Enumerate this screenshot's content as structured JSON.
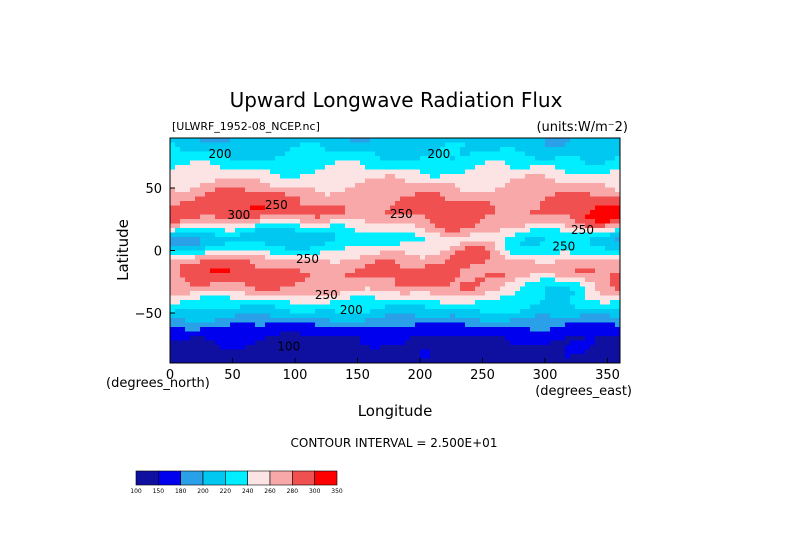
{
  "chart_data": {
    "type": "heatmap",
    "title": "Upward Longwave Radiation Flux",
    "file_label": "[ULWRF_1952-08_NCEP.nc]",
    "units_label": "(units:W/m⁻2)",
    "xlabel": "Longitude",
    "ylabel": "Latitude",
    "x_units_label": "(degrees_east)",
    "y_units_label": "(degrees_north)",
    "xlim": [
      0,
      360
    ],
    "ylim": [
      -90,
      90
    ],
    "x_ticks": [
      0,
      50,
      100,
      150,
      200,
      250,
      300,
      350
    ],
    "y_ticks": [
      -50,
      0,
      50
    ],
    "x_tick_labels": [
      "0",
      "50",
      "100",
      "150",
      "200",
      "250",
      "300",
      "350"
    ],
    "y_tick_labels": [
      "−50",
      "0",
      "50"
    ],
    "contour_interval_label": "CONTOUR INTERVAL = 2.500E+01",
    "color_levels": [
      100,
      150,
      180,
      200,
      220,
      240,
      260,
      280,
      300,
      350
    ],
    "colorbar_labels": [
      "100",
      "150",
      "180",
      "200",
      "220",
      "240",
      "260",
      "280",
      "300",
      "350"
    ],
    "colors": [
      "#1010a0",
      "#0000ee",
      "#2aa0e8",
      "#00c8f0",
      "#00eeff",
      "#fde4e4",
      "#f8a8a8",
      "#f05050",
      "#ff0000"
    ],
    "contour_labels": [
      {
        "text": "200",
        "lon": 40,
        "lat": 77
      },
      {
        "text": "200",
        "lon": 215,
        "lat": 77
      },
      {
        "text": "300",
        "lon": 55,
        "lat": 28
      },
      {
        "text": "250",
        "lon": 85,
        "lat": 36
      },
      {
        "text": "250",
        "lon": 185,
        "lat": 29
      },
      {
        "text": "250",
        "lon": 330,
        "lat": 16
      },
      {
        "text": "250",
        "lon": 315,
        "lat": 3
      },
      {
        "text": "250",
        "lon": 110,
        "lat": -7
      },
      {
        "text": "250",
        "lon": 125,
        "lat": -36
      },
      {
        "text": "200",
        "lon": 145,
        "lat": -48
      },
      {
        "text": "100",
        "lon": 95,
        "lat": -77
      }
    ],
    "zonal_profile": [
      {
        "lat": 90,
        "value": 205
      },
      {
        "lat": 80,
        "value": 215
      },
      {
        "lat": 70,
        "value": 230
      },
      {
        "lat": 55,
        "value": 258
      },
      {
        "lat": 40,
        "value": 280
      },
      {
        "lat": 30,
        "value": 285
      },
      {
        "lat": 20,
        "value": 262
      },
      {
        "lat": 10,
        "value": 232
      },
      {
        "lat": 0,
        "value": 250
      },
      {
        "lat": -10,
        "value": 272
      },
      {
        "lat": -20,
        "value": 285
      },
      {
        "lat": -30,
        "value": 275
      },
      {
        "lat": -40,
        "value": 238
      },
      {
        "lat": -50,
        "value": 212
      },
      {
        "lat": -60,
        "value": 180
      },
      {
        "lat": -70,
        "value": 150
      },
      {
        "lat": -80,
        "value": 140
      },
      {
        "lat": -90,
        "value": 135
      }
    ],
    "warm_features": [
      {
        "lon": 45,
        "lat": 34,
        "value": 305
      },
      {
        "lon": 345,
        "lat": 28,
        "value": 300
      },
      {
        "lon": 25,
        "lat": -15,
        "value": 300
      },
      {
        "lon": 245,
        "lat": -5,
        "value": 302
      },
      {
        "lon": 225,
        "lat": 22,
        "value": 285
      }
    ],
    "cold_features": [
      {
        "lon": 15,
        "lat": 7,
        "value": 180
      },
      {
        "lon": 90,
        "lat": 12,
        "value": 212
      },
      {
        "lon": 130,
        "lat": 10,
        "value": 215
      },
      {
        "lon": 285,
        "lat": 2,
        "value": 210
      },
      {
        "lon": 310,
        "lat": -30,
        "value": 210
      }
    ]
  }
}
